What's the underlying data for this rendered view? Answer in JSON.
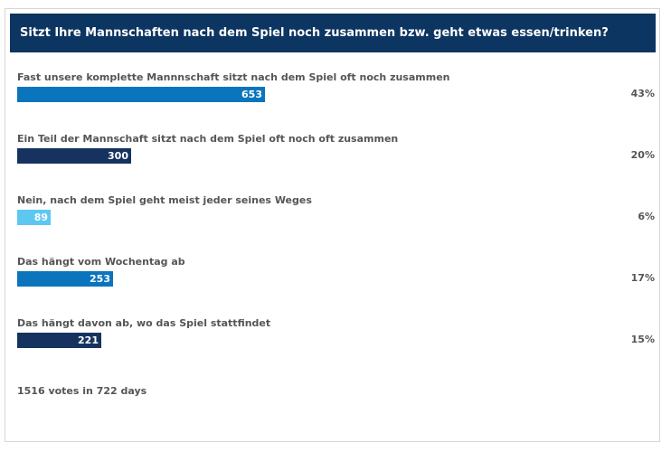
{
  "poll": {
    "question": "Sitzt Ihre Mannschaften nach dem Spiel noch zusammen bzw. geht etwas essen/trinken?",
    "answers": [
      {
        "label": "Fast unsere komplette Mannnschaft sitzt nach dem Spiel oft noch zusammen",
        "votes": "653",
        "percent": "43%",
        "bar_color": "#0a75bd"
      },
      {
        "label": "Ein Teil der Mannschaft sitzt nach dem Spiel oft noch oft zusammen",
        "votes": "300",
        "percent": "20%",
        "bar_color": "#16335f"
      },
      {
        "label": "Nein, nach dem Spiel geht meist jeder seines Weges",
        "votes": "89",
        "percent": "6%",
        "bar_color": "#5cc8f1"
      },
      {
        "label": "Das hängt vom Wochentag ab",
        "votes": "253",
        "percent": "17%",
        "bar_color": "#0a75bd"
      },
      {
        "label": "Das hängt davon ab, wo das Spiel stattfindet",
        "votes": "221",
        "percent": "15%",
        "bar_color": "#16335f"
      }
    ],
    "footer": "1516 votes in 722 days"
  }
}
